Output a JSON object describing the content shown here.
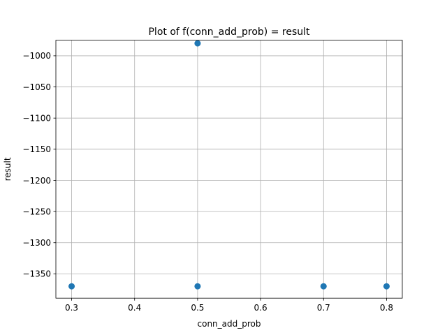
{
  "chart_data": {
    "type": "scatter",
    "title": "Plot of f(conn_add_prob) = result",
    "xlabel": "conn_add_prob",
    "ylabel": "result",
    "xlim": [
      0.275,
      0.825
    ],
    "ylim": [
      -1389,
      -975
    ],
    "x_ticks": [
      0.3,
      0.4,
      0.5,
      0.6,
      0.7,
      0.8
    ],
    "x_tick_labels": [
      "0.3",
      "0.4",
      "0.5",
      "0.6",
      "0.7",
      "0.8"
    ],
    "y_ticks": [
      -1000,
      -1050,
      -1100,
      -1150,
      -1200,
      -1250,
      -1300,
      -1350
    ],
    "y_tick_labels": [
      "−1000",
      "−1050",
      "−1100",
      "−1150",
      "−1200",
      "−1250",
      "−1300",
      "−1350"
    ],
    "grid": true,
    "marker_color": "#1f77b4",
    "points": [
      {
        "x": 0.5,
        "y": -980
      },
      {
        "x": 0.3,
        "y": -1370
      },
      {
        "x": 0.5,
        "y": -1370
      },
      {
        "x": 0.7,
        "y": -1370
      },
      {
        "x": 0.8,
        "y": -1370
      }
    ]
  }
}
